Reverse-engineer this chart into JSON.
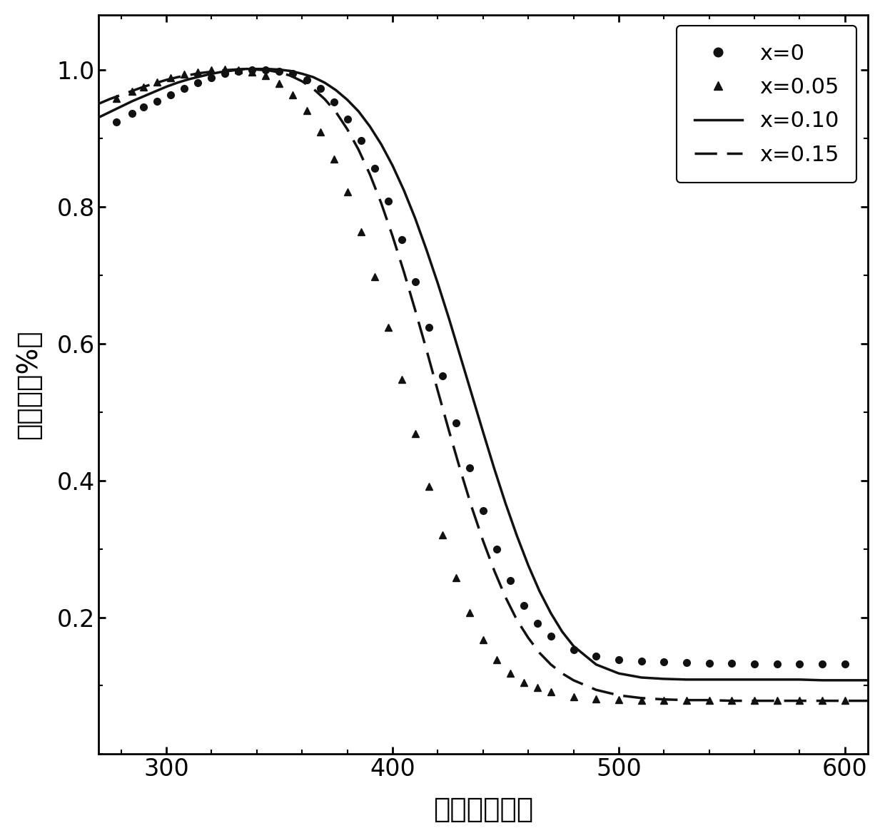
{
  "xlabel": "波长（纳米）",
  "ylabel": "吸光率（%）",
  "xlim": [
    270,
    610
  ],
  "ylim": [
    0.0,
    1.08
  ],
  "xticks": [
    300,
    400,
    500,
    600
  ],
  "yticks": [
    0.2,
    0.4,
    0.6,
    0.8,
    1.0
  ],
  "background_color": "#ffffff",
  "legend_labels": [
    "x=0",
    "x=0.05",
    "x=0.10",
    "x=0.15"
  ],
  "x0_scatter_x": [
    278,
    285,
    290,
    296,
    302,
    308,
    314,
    320,
    326,
    332,
    338,
    344,
    350,
    356,
    362,
    368,
    374,
    380,
    386,
    392,
    398,
    404,
    410,
    416,
    422,
    428,
    434,
    440,
    446,
    452,
    458,
    464,
    470,
    480,
    490,
    500,
    510,
    520,
    530,
    540,
    550,
    560,
    570,
    580,
    590,
    600
  ],
  "x0_scatter_y": [
    0.924,
    0.936,
    0.945,
    0.954,
    0.963,
    0.972,
    0.981,
    0.988,
    0.994,
    0.998,
    1.0,
    1.0,
    0.998,
    0.994,
    0.985,
    0.972,
    0.953,
    0.928,
    0.896,
    0.856,
    0.808,
    0.752,
    0.69,
    0.623,
    0.553,
    0.484,
    0.418,
    0.356,
    0.3,
    0.254,
    0.217,
    0.191,
    0.172,
    0.153,
    0.143,
    0.138,
    0.136,
    0.135,
    0.134,
    0.133,
    0.133,
    0.132,
    0.132,
    0.132,
    0.132,
    0.132
  ],
  "x005_scatter_x": [
    278,
    285,
    290,
    296,
    302,
    308,
    314,
    320,
    326,
    332,
    338,
    344,
    350,
    356,
    362,
    368,
    374,
    380,
    386,
    392,
    398,
    404,
    410,
    416,
    422,
    428,
    434,
    440,
    446,
    452,
    458,
    464,
    470,
    480,
    490,
    500,
    510,
    520,
    530,
    540,
    550,
    560,
    570,
    580,
    590,
    600
  ],
  "x005_scatter_y": [
    0.958,
    0.968,
    0.975,
    0.982,
    0.988,
    0.993,
    0.997,
    1.0,
    1.001,
    1.0,
    0.997,
    0.991,
    0.98,
    0.963,
    0.94,
    0.909,
    0.869,
    0.821,
    0.763,
    0.697,
    0.624,
    0.547,
    0.468,
    0.391,
    0.32,
    0.258,
    0.207,
    0.167,
    0.138,
    0.118,
    0.105,
    0.097,
    0.091,
    0.084,
    0.081,
    0.08,
    0.079,
    0.079,
    0.079,
    0.079,
    0.079,
    0.079,
    0.079,
    0.079,
    0.079,
    0.079
  ],
  "x010_line_x": [
    270,
    275,
    280,
    285,
    290,
    295,
    300,
    305,
    310,
    315,
    320,
    325,
    330,
    335,
    340,
    345,
    350,
    355,
    360,
    365,
    370,
    375,
    380,
    385,
    390,
    395,
    400,
    405,
    410,
    415,
    420,
    425,
    430,
    435,
    440,
    445,
    450,
    455,
    460,
    465,
    470,
    475,
    480,
    490,
    500,
    510,
    520,
    530,
    540,
    550,
    560,
    570,
    580,
    590,
    600,
    610
  ],
  "x010_line_y": [
    0.93,
    0.938,
    0.946,
    0.954,
    0.961,
    0.968,
    0.975,
    0.981,
    0.986,
    0.99,
    0.994,
    0.997,
    0.999,
    1.001,
    1.001,
    1.001,
    1.0,
    0.998,
    0.994,
    0.989,
    0.981,
    0.97,
    0.956,
    0.939,
    0.917,
    0.891,
    0.86,
    0.824,
    0.783,
    0.737,
    0.688,
    0.636,
    0.581,
    0.526,
    0.471,
    0.417,
    0.366,
    0.319,
    0.276,
    0.238,
    0.206,
    0.179,
    0.158,
    0.131,
    0.118,
    0.112,
    0.11,
    0.109,
    0.109,
    0.109,
    0.109,
    0.109,
    0.109,
    0.108,
    0.108,
    0.108
  ],
  "x015_line_x": [
    270,
    275,
    280,
    285,
    290,
    295,
    300,
    305,
    310,
    315,
    320,
    325,
    330,
    335,
    340,
    345,
    350,
    355,
    360,
    365,
    370,
    375,
    380,
    385,
    390,
    395,
    400,
    405,
    410,
    415,
    420,
    425,
    430,
    435,
    440,
    445,
    450,
    455,
    460,
    465,
    470,
    475,
    480,
    490,
    500,
    510,
    520,
    530,
    540,
    550,
    560,
    570,
    580,
    590,
    600,
    610
  ],
  "x015_line_y": [
    0.95,
    0.957,
    0.963,
    0.969,
    0.975,
    0.98,
    0.985,
    0.989,
    0.992,
    0.995,
    0.997,
    0.999,
    1.0,
    1.001,
    1.0,
    0.999,
    0.996,
    0.991,
    0.983,
    0.972,
    0.957,
    0.938,
    0.913,
    0.883,
    0.847,
    0.805,
    0.757,
    0.705,
    0.649,
    0.591,
    0.531,
    0.472,
    0.415,
    0.361,
    0.312,
    0.268,
    0.229,
    0.196,
    0.17,
    0.148,
    0.131,
    0.118,
    0.108,
    0.094,
    0.086,
    0.082,
    0.08,
    0.079,
    0.079,
    0.078,
    0.078,
    0.078,
    0.078,
    0.078,
    0.078,
    0.078
  ],
  "linewidth": 2.5,
  "markersize": 7,
  "tick_labelsize": 24,
  "label_fontsize": 28,
  "legend_fontsize": 22
}
